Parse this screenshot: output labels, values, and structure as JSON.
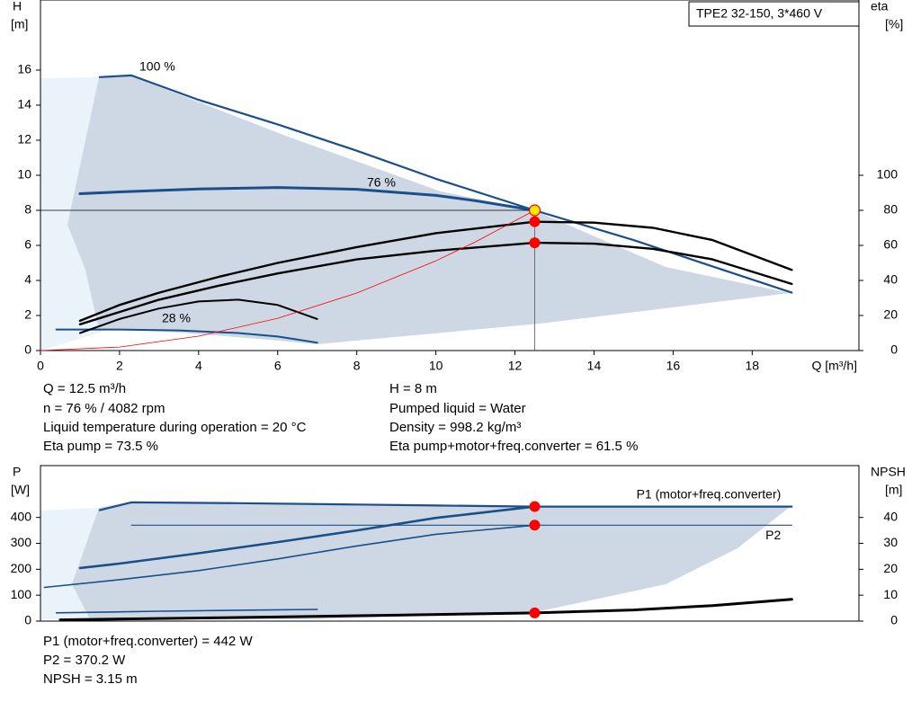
{
  "chart_data": [
    {
      "type": "line",
      "title": "TPE2 32-150, 3*460 V",
      "y_label": [
        "H",
        "[m]"
      ],
      "y2_label": [
        "eta",
        "[%]"
      ],
      "x_label": "Q [m³/h]",
      "xlim": [
        0,
        20.7
      ],
      "xticks": [
        0,
        2,
        4,
        6,
        8,
        10,
        12,
        14,
        16,
        18
      ],
      "ylim": [
        0,
        20
      ],
      "yticks": [
        0,
        2,
        4,
        6,
        8,
        10,
        12,
        14,
        16
      ],
      "y2lim": [
        0,
        200
      ],
      "y2ticks": [
        0,
        20,
        40,
        60,
        80,
        100
      ],
      "series": [
        {
          "label": "100 %",
          "color": "#1a4f8b",
          "width": 2.2,
          "x": [
            1.5,
            2.3,
            4,
            6,
            8,
            10,
            12.5,
            15,
            17,
            19
          ],
          "y": [
            15.6,
            15.7,
            14.3,
            12.9,
            11.4,
            9.8,
            8,
            6.3,
            4.8,
            3.3
          ]
        },
        {
          "label": "76 %",
          "color": "#1a4f8b",
          "width": 3,
          "x": [
            1,
            2,
            4,
            6,
            8,
            10,
            11,
            12.5
          ],
          "y": [
            8.95,
            9.05,
            9.22,
            9.3,
            9.2,
            8.85,
            8.55,
            8
          ]
        },
        {
          "label": "28 %",
          "color": "#1a4f8b",
          "width": 2,
          "x": [
            0.4,
            2,
            3.5,
            5,
            6,
            7
          ],
          "y": [
            1.2,
            1.2,
            1.15,
            1.0,
            0.8,
            0.45
          ]
        },
        {
          "color": "#000000",
          "width": 2.4,
          "axis": "y2",
          "x": [
            1,
            2,
            3,
            4.5,
            6,
            8,
            10,
            12.5,
            14,
            15.5,
            17,
            19
          ],
          "y": [
            17,
            26,
            33,
            42,
            50,
            59,
            67,
            73.5,
            73,
            70,
            63,
            46
          ]
        },
        {
          "color": "#000000",
          "width": 2.4,
          "axis": "y2",
          "x": [
            1,
            2,
            3,
            4.5,
            6,
            8,
            10,
            12.5,
            14,
            15.5,
            17,
            19
          ],
          "y": [
            15,
            22,
            29,
            37,
            44,
            52,
            57,
            61.5,
            61,
            58,
            52,
            38
          ]
        },
        {
          "color": "#000000",
          "width": 2,
          "axis": "y2",
          "x": [
            1,
            2,
            3,
            4,
            5,
            6,
            7
          ],
          "y": [
            10,
            18,
            24,
            28,
            29,
            26,
            18
          ]
        },
        {
          "color": "#ff0000",
          "width": 0.8,
          "x": [
            0,
            2,
            4,
            6,
            8,
            10,
            11,
            12.5
          ],
          "y": [
            0,
            0.2,
            0.82,
            1.84,
            3.28,
            5.12,
            6.2,
            8
          ]
        }
      ],
      "markers": [
        {
          "x": 12.5,
          "y": 8,
          "color": "#ffe600",
          "crosshair": true
        },
        {
          "x": 12.5,
          "y": 73.5,
          "axis": "y2",
          "color": "#ff0000"
        },
        {
          "x": 12.5,
          "y": 61.5,
          "axis": "y2",
          "color": "#ff0000"
        }
      ],
      "info": [
        "Q = 12.5 m³/h",
        "n = 76 % / 4082 rpm",
        "Liquid temperature during operation = 20 °C",
        "Eta pump = 73.5 %",
        "H = 8 m",
        "Pumped liquid = Water",
        "Density = 998.2 kg/m³",
        "Eta pump+motor+freq.converter = 61.5 %"
      ]
    },
    {
      "type": "line",
      "y_label": [
        "P",
        "[W]"
      ],
      "y2_label": [
        "NPSH",
        "[m]"
      ],
      "xlim": [
        0,
        20.7
      ],
      "ylim": [
        0,
        600
      ],
      "yticks": [
        0,
        100,
        200,
        300,
        400
      ],
      "y2lim": [
        0,
        60
      ],
      "y2ticks": [
        0,
        10,
        20,
        30,
        40
      ],
      "series": [
        {
          "name": "P1 (motor+freq.converter)",
          "color": "#1a4f8b",
          "width": 2.2,
          "x": [
            1.5,
            2.3,
            5,
            8,
            10,
            12.5,
            15,
            19
          ],
          "y": [
            428,
            458,
            455,
            450,
            446,
            442,
            442,
            442
          ]
        },
        {
          "name": "P2",
          "color": "#1a4f8b",
          "width": 1.2,
          "x": [
            2.3,
            6,
            10,
            12.5,
            15,
            19
          ],
          "y": [
            370,
            370,
            370,
            370.2,
            370,
            370
          ]
        },
        {
          "color": "#1a4f8b",
          "width": 2.6,
          "x": [
            1,
            2,
            4,
            6,
            8,
            10,
            12.5
          ],
          "y": [
            205,
            222,
            262,
            305,
            350,
            398,
            442
          ]
        },
        {
          "color": "#1a4f8b",
          "width": 1.6,
          "x": [
            0.1,
            2,
            4,
            6,
            8,
            10,
            12.5
          ],
          "y": [
            130,
            160,
            195,
            240,
            290,
            335,
            370.2
          ]
        },
        {
          "color": "#1a4f8b",
          "width": 1.6,
          "x": [
            0.4,
            3,
            5,
            7
          ],
          "y": [
            32,
            38,
            42,
            45
          ]
        },
        {
          "color": "#000000",
          "width": 3,
          "axis": "y2",
          "x": [
            0.5,
            3,
            6,
            9,
            12.5,
            15,
            17,
            19
          ],
          "y": [
            0.5,
            1,
            1.6,
            2.3,
            3.15,
            4.3,
            6,
            8.4
          ]
        }
      ],
      "markers": [
        {
          "x": 12.5,
          "y": 442,
          "color": "#ff0000"
        },
        {
          "x": 12.5,
          "y": 370.2,
          "color": "#ff0000"
        },
        {
          "x": 12.5,
          "y": 3.15,
          "axis": "y2",
          "color": "#ff0000"
        }
      ],
      "info": [
        "P1 (motor+freq.converter) = 442 W",
        "P2 = 370.2 W",
        "NPSH = 3.15 m"
      ]
    }
  ]
}
